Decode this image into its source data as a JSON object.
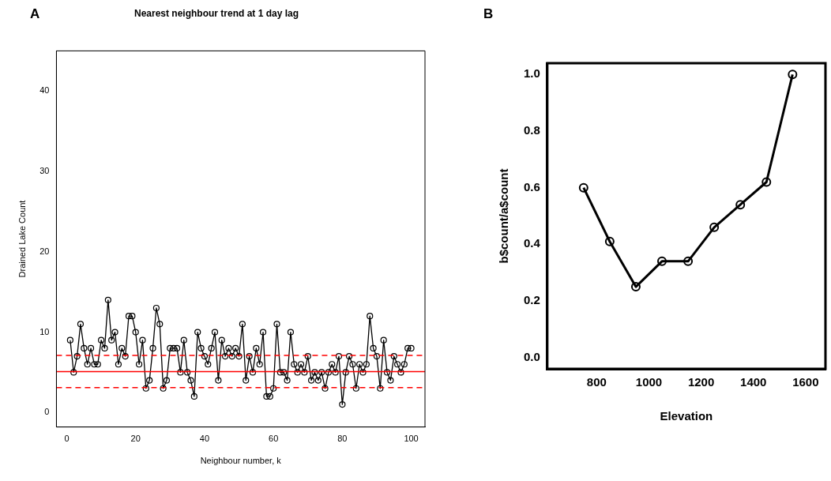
{
  "chart_data": [
    {
      "type": "line",
      "title": "Nearest neighbour trend at 1 day lag",
      "xlabel": "Neighbour number, k",
      "ylabel": "Drained Lake Count",
      "annotations": [
        "A"
      ],
      "marker": "circle",
      "line_style": "solid",
      "grid": false,
      "x": [
        1,
        2,
        3,
        4,
        5,
        6,
        7,
        8,
        9,
        10,
        11,
        12,
        13,
        14,
        15,
        16,
        17,
        18,
        19,
        20,
        21,
        22,
        23,
        24,
        25,
        26,
        27,
        28,
        29,
        30,
        31,
        32,
        33,
        34,
        35,
        36,
        37,
        38,
        39,
        40,
        41,
        42,
        43,
        44,
        45,
        46,
        47,
        48,
        49,
        50,
        51,
        52,
        53,
        54,
        55,
        56,
        57,
        58,
        59,
        60,
        61,
        62,
        63,
        64,
        65,
        66,
        67,
        68,
        69,
        70,
        71,
        72,
        73,
        74,
        75,
        76,
        77,
        78,
        79,
        80,
        81,
        82,
        83,
        84,
        85,
        86,
        87,
        88,
        89,
        90,
        91,
        92,
        93,
        94,
        95,
        96,
        97,
        98,
        99,
        100
      ],
      "series": [
        {
          "color": "#000000",
          "values": [
            9,
            5,
            7,
            11,
            8,
            6,
            8,
            6,
            6,
            9,
            8,
            14,
            9,
            10,
            6,
            8,
            7,
            12,
            12,
            10,
            6,
            9,
            3,
            4,
            8,
            13,
            11,
            3,
            4,
            8,
            8,
            8,
            5,
            9,
            5,
            4,
            2,
            10,
            8,
            7,
            6,
            8,
            10,
            4,
            9,
            7,
            8,
            7,
            8,
            7,
            11,
            4,
            7,
            5,
            8,
            6,
            10,
            2,
            2,
            3,
            11,
            5,
            5,
            4,
            10,
            6,
            5,
            6,
            5,
            7,
            4,
            5,
            4,
            5,
            3,
            5,
            6,
            5,
            7,
            1,
            5,
            7,
            6,
            3,
            6,
            5,
            6,
            12,
            8,
            7,
            3,
            9,
            5,
            4,
            7,
            6,
            5,
            6,
            8,
            8
          ]
        }
      ],
      "xlim": [
        -3,
        104
      ],
      "ylim": [
        -1.8,
        45
      ],
      "xticks": [
        0,
        20,
        40,
        60,
        80,
        100
      ],
      "yticks": [
        0,
        10,
        20,
        30,
        40
      ],
      "ref_lines": [
        {
          "axis": "y",
          "value": 5.1,
          "color": "#ff0000",
          "line_style": "solid"
        },
        {
          "axis": "y",
          "value": 7.1,
          "color": "#ff0000",
          "line_style": "dashed"
        },
        {
          "axis": "y",
          "value": 3.1,
          "color": "#ff0000",
          "line_style": "dashed"
        }
      ]
    },
    {
      "type": "line",
      "xlabel": "Elevation",
      "ylabel": "b$count/a$count",
      "annotations": [
        "B"
      ],
      "marker": "circle",
      "line_style": "solid",
      "grid": false,
      "x": [
        750,
        850,
        950,
        1050,
        1150,
        1250,
        1350,
        1450,
        1550
      ],
      "series": [
        {
          "color": "#000000",
          "values": [
            0.6,
            0.41,
            0.25,
            0.34,
            0.34,
            0.46,
            0.54,
            0.62,
            1.0
          ]
        }
      ],
      "xlim": [
        611,
        1676
      ],
      "ylim": [
        -0.04,
        1.04
      ],
      "xticks": [
        800,
        1000,
        1200,
        1400,
        1600
      ],
      "yticks": [
        {
          "value": 0,
          "label": "0.0"
        },
        {
          "value": 0.2,
          "label": "0.2"
        },
        {
          "value": 0.4,
          "label": "0.4"
        },
        {
          "value": 0.6,
          "label": "0.6"
        },
        {
          "value": 0.8,
          "label": "0.8"
        },
        {
          "value": 1,
          "label": "1.0"
        }
      ]
    }
  ]
}
